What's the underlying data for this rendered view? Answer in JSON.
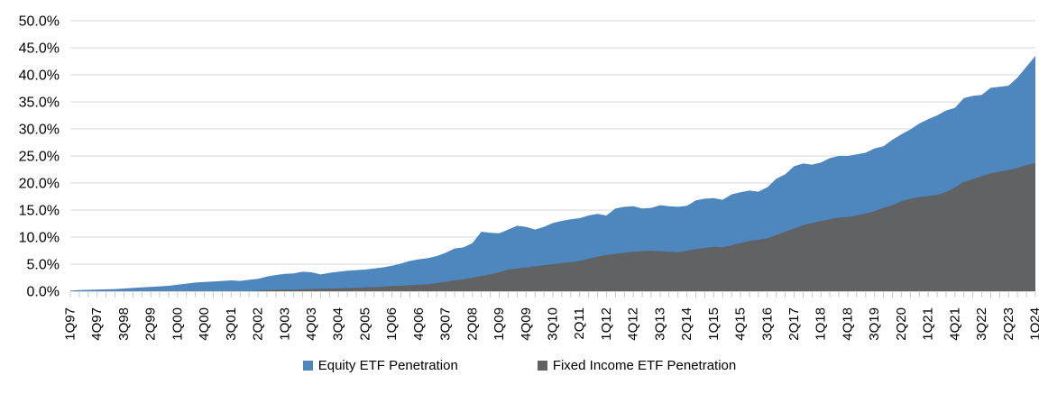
{
  "page": {
    "background": "#ffffff",
    "title": ""
  },
  "chart_data": {
    "type": "area",
    "title": "",
    "xlabel": "",
    "ylabel": "",
    "ylim": [
      0,
      50
    ],
    "y_tick_step": 5,
    "y_tick_labels": [
      "0.0%",
      "5.0%",
      "10.0%",
      "15.0%",
      "20.0%",
      "25.0%",
      "30.0%",
      "35.0%",
      "40.0%",
      "45.0%",
      "50.0%"
    ],
    "x_label_interval": 3,
    "grid": true,
    "gridline_color": "#D9D9D9",
    "axis_line_color": "#D9D9D9",
    "tick_color": "#C9C9C9",
    "axis_text_color": "#000000",
    "legend_position": "bottom",
    "categories": [
      "1Q97",
      "2Q97",
      "3Q97",
      "4Q97",
      "1Q98",
      "2Q98",
      "3Q98",
      "4Q98",
      "1Q99",
      "2Q99",
      "3Q99",
      "4Q99",
      "1Q00",
      "2Q00",
      "3Q00",
      "4Q00",
      "1Q01",
      "2Q01",
      "3Q01",
      "4Q01",
      "1Q02",
      "2Q02",
      "3Q02",
      "4Q02",
      "1Q03",
      "2Q03",
      "3Q03",
      "4Q03",
      "1Q04",
      "2Q04",
      "3Q04",
      "4Q04",
      "1Q05",
      "2Q05",
      "3Q05",
      "4Q05",
      "1Q06",
      "2Q06",
      "3Q06",
      "4Q06",
      "1Q07",
      "2Q07",
      "3Q07",
      "4Q07",
      "1Q08",
      "2Q08",
      "3Q08",
      "4Q08",
      "1Q09",
      "2Q09",
      "3Q09",
      "4Q09",
      "1Q10",
      "2Q10",
      "3Q10",
      "4Q10",
      "1Q11",
      "2Q11",
      "3Q11",
      "4Q11",
      "1Q12",
      "2Q12",
      "3Q12",
      "4Q12",
      "1Q13",
      "2Q13",
      "3Q13",
      "4Q13",
      "1Q14",
      "2Q14",
      "3Q14",
      "4Q14",
      "1Q15",
      "2Q15",
      "3Q15",
      "4Q15",
      "1Q16",
      "2Q16",
      "3Q16",
      "4Q16",
      "1Q17",
      "2Q17",
      "3Q17",
      "4Q17",
      "1Q18",
      "2Q18",
      "3Q18",
      "4Q18",
      "1Q19",
      "2Q19",
      "3Q19",
      "4Q19",
      "1Q20",
      "2Q20",
      "3Q20",
      "4Q20",
      "1Q21",
      "2Q21",
      "3Q21",
      "4Q21",
      "1Q22",
      "2Q22",
      "3Q22",
      "4Q22",
      "1Q23",
      "2Q23",
      "3Q23",
      "4Q23",
      "1Q24"
    ],
    "series": [
      {
        "name": "Equity ETF Penetration",
        "color": "#4E87BE",
        "values": [
          0.1,
          0.2,
          0.25,
          0.3,
          0.35,
          0.4,
          0.5,
          0.6,
          0.7,
          0.8,
          0.9,
          1.0,
          1.2,
          1.4,
          1.6,
          1.7,
          1.8,
          1.9,
          2.0,
          1.9,
          2.1,
          2.3,
          2.7,
          3.0,
          3.2,
          3.3,
          3.6,
          3.5,
          3.1,
          3.4,
          3.6,
          3.8,
          3.9,
          4.0,
          4.2,
          4.4,
          4.7,
          5.1,
          5.6,
          5.9,
          6.1,
          6.5,
          7.1,
          7.9,
          8.1,
          8.9,
          11.0,
          10.8,
          10.7,
          11.4,
          12.1,
          11.9,
          11.4,
          11.9,
          12.6,
          13.0,
          13.3,
          13.5,
          14.0,
          14.3,
          14.0,
          15.3,
          15.6,
          15.7,
          15.3,
          15.4,
          15.9,
          15.7,
          15.6,
          15.8,
          16.8,
          17.1,
          17.2,
          16.9,
          17.9,
          18.3,
          18.6,
          18.4,
          19.2,
          20.8,
          21.6,
          23.1,
          23.6,
          23.4,
          23.8,
          24.6,
          25.0,
          25.0,
          25.3,
          25.6,
          26.4,
          26.8,
          28.0,
          29.0,
          29.9,
          31.0,
          31.8,
          32.5,
          33.4,
          33.9,
          35.7,
          36.1,
          36.3,
          37.6,
          37.8,
          38.0,
          39.5,
          41.5,
          43.5
        ]
      },
      {
        "name": "Fixed Income ETF Penetration",
        "color": "#606264",
        "values": [
          0,
          0,
          0,
          0,
          0,
          0,
          0,
          0,
          0,
          0,
          0,
          0,
          0,
          0,
          0,
          0,
          0,
          0,
          0,
          0,
          0,
          0.1,
          0.2,
          0.25,
          0.3,
          0.3,
          0.35,
          0.4,
          0.45,
          0.5,
          0.55,
          0.6,
          0.65,
          0.7,
          0.75,
          0.85,
          0.95,
          1.0,
          1.1,
          1.2,
          1.3,
          1.5,
          1.7,
          2.0,
          2.2,
          2.5,
          2.8,
          3.1,
          3.5,
          4.0,
          4.2,
          4.4,
          4.6,
          4.8,
          5.0,
          5.2,
          5.4,
          5.6,
          6.0,
          6.4,
          6.7,
          6.9,
          7.1,
          7.3,
          7.4,
          7.5,
          7.4,
          7.3,
          7.2,
          7.5,
          7.8,
          8.0,
          8.2,
          8.1,
          8.5,
          8.9,
          9.3,
          9.5,
          9.8,
          10.4,
          11.0,
          11.6,
          12.2,
          12.6,
          13.0,
          13.3,
          13.6,
          13.7,
          14.0,
          14.4,
          14.8,
          15.4,
          15.9,
          16.6,
          17.1,
          17.4,
          17.6,
          17.8,
          18.3,
          19.2,
          20.2,
          20.7,
          21.3,
          21.8,
          22.1,
          22.4,
          22.8,
          23.3,
          23.7
        ]
      }
    ]
  }
}
